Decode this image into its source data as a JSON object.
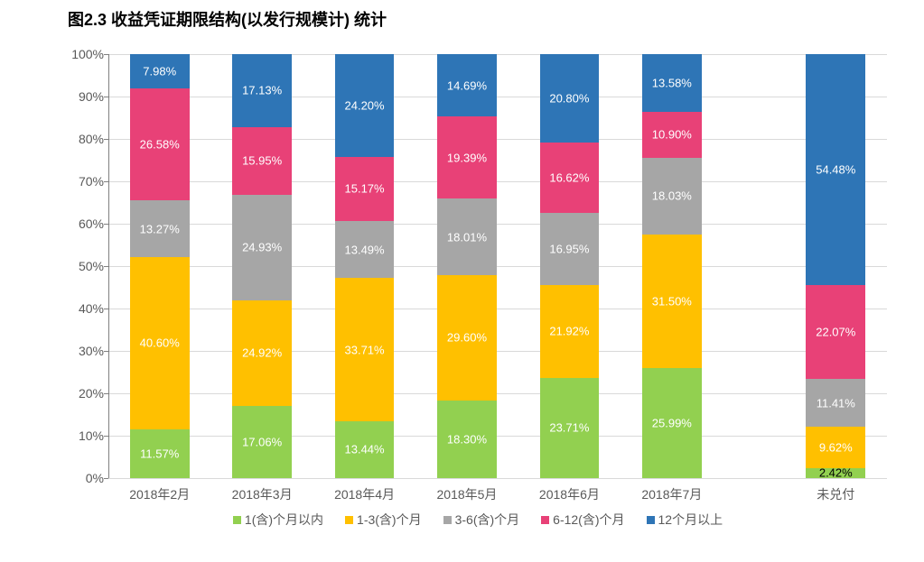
{
  "title": "图2.3 收益凭证期限结构(以发行规模计) 统计",
  "title_fontsize": 18,
  "chart": {
    "type": "stacked-bar-100",
    "background_color": "#ffffff",
    "grid_color": "#d9d9d9",
    "axis_color": "#808080",
    "tick_label_color": "#595959",
    "tick_fontsize": 14,
    "label_fontsize": 13,
    "ylim": [
      0,
      100
    ],
    "ytick_step": 10,
    "ytick_suffix": "%",
    "bar_width_ratio": 0.58,
    "gap_after_index": 5,
    "categories": [
      "2018年2月",
      "2018年3月",
      "2018年4月",
      "2018年5月",
      "2018年6月",
      "2018年7月",
      "未兑付"
    ],
    "series": [
      {
        "name": "1(含)个月以内",
        "color": "#92d050"
      },
      {
        "name": "1-3(含)个月",
        "color": "#ffc000"
      },
      {
        "name": "3-6(含)个月",
        "color": "#a6a6a6"
      },
      {
        "name": "6-12(含)个月",
        "color": "#e84177"
      },
      {
        "name": "12个月以上",
        "color": "#2e75b6"
      }
    ],
    "values": [
      [
        11.57,
        40.6,
        13.27,
        26.58,
        7.98
      ],
      [
        17.06,
        24.92,
        24.93,
        15.95,
        17.13
      ],
      [
        13.44,
        33.71,
        13.49,
        15.17,
        24.2
      ],
      [
        18.3,
        29.6,
        18.01,
        19.39,
        14.69
      ],
      [
        23.71,
        21.92,
        16.95,
        16.62,
        20.8
      ],
      [
        25.99,
        31.5,
        18.03,
        10.9,
        13.58
      ],
      [
        2.42,
        9.62,
        11.41,
        22.07,
        54.48
      ]
    ],
    "label_colors": [
      [
        "#ffffff",
        "#ffffff",
        "#ffffff",
        "#ffffff",
        "#ffffff"
      ],
      [
        "#ffffff",
        "#ffffff",
        "#ffffff",
        "#ffffff",
        "#ffffff"
      ],
      [
        "#ffffff",
        "#ffffff",
        "#ffffff",
        "#ffffff",
        "#ffffff"
      ],
      [
        "#ffffff",
        "#ffffff",
        "#ffffff",
        "#ffffff",
        "#ffffff"
      ],
      [
        "#ffffff",
        "#ffffff",
        "#ffffff",
        "#ffffff",
        "#ffffff"
      ],
      [
        "#ffffff",
        "#ffffff",
        "#ffffff",
        "#ffffff",
        "#ffffff"
      ],
      [
        "#000000",
        "#ffffff",
        "#ffffff",
        "#ffffff",
        "#ffffff"
      ]
    ]
  }
}
